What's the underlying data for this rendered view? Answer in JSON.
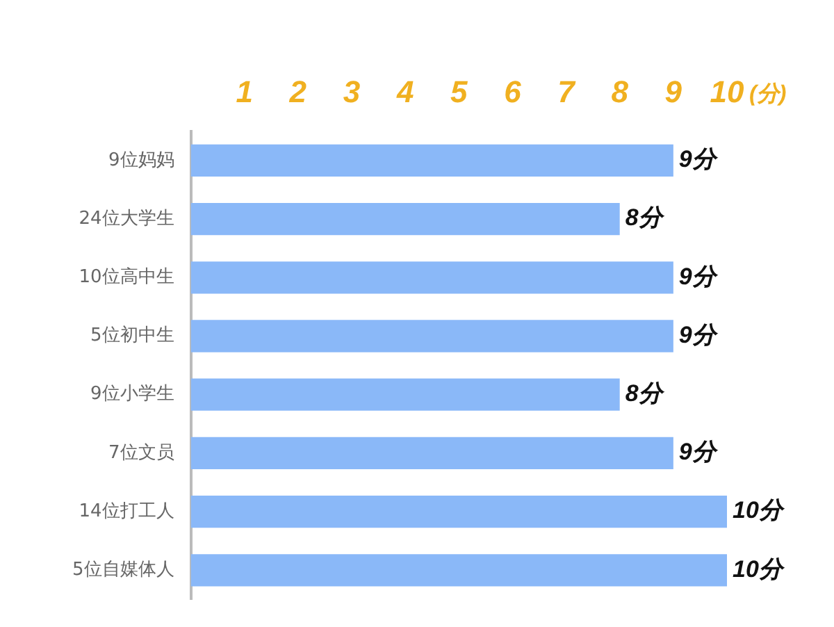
{
  "chart_data": {
    "type": "bar",
    "orientation": "horizontal",
    "xlabel": "(分)",
    "categories": [
      "9位妈妈",
      "24位大学生",
      "10位高中生",
      "5位初中生",
      "9位小学生",
      "7位文员",
      "14位打工人",
      "5位自媒体人"
    ],
    "values": [
      9,
      8,
      9,
      9,
      8,
      9,
      10,
      10
    ],
    "value_labels": [
      "9分",
      "8分",
      "9分",
      "9分",
      "8分",
      "9分",
      "10分",
      "10分"
    ],
    "color": "#8ab8f8",
    "xlim": [
      0,
      10
    ],
    "xticks": [
      1,
      2,
      3,
      4,
      5,
      6,
      7,
      8,
      9,
      10
    ]
  }
}
